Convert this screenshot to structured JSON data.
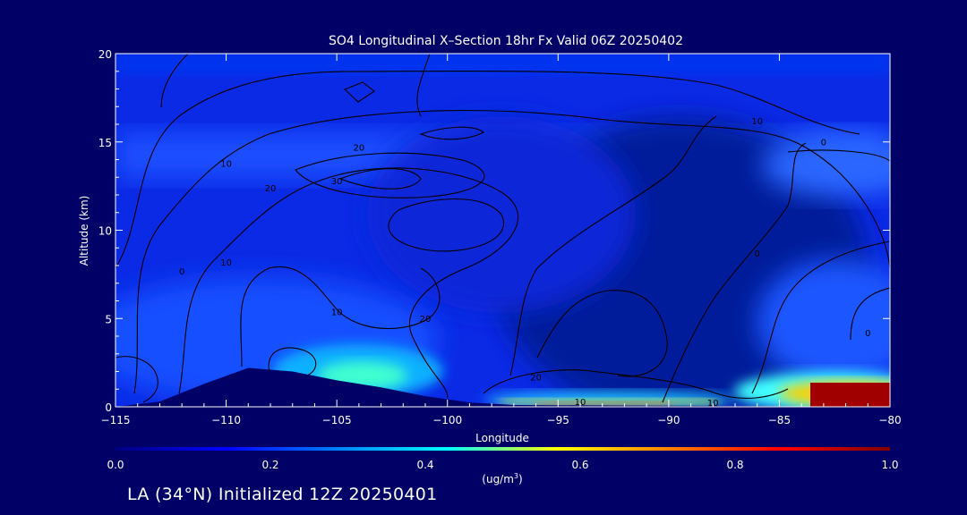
{
  "chart_data": {
    "type": "heatmap",
    "title": "SO4 Longitudinal X–Section 18hr  Fx Valid 06Z 20250402",
    "xlabel": "Longitude",
    "ylabel": "Altitude (km)",
    "xlim": [
      -115,
      -80
    ],
    "ylim": [
      0,
      20
    ],
    "x_ticks": [
      -115,
      -110,
      -105,
      -100,
      -95,
      -90,
      -85,
      -80
    ],
    "x_tick_labels": [
      "−115",
      "−110",
      "−105",
      "−100",
      "−95",
      "−90",
      "−85",
      "−80"
    ],
    "y_ticks": [
      0,
      5,
      10,
      15,
      20
    ],
    "y_tick_labels": [
      "0",
      "5",
      "10",
      "15",
      "20"
    ],
    "colorbar": {
      "min": 0.0,
      "max": 1.0,
      "ticks": [
        0.0,
        0.2,
        0.4,
        0.6,
        0.8,
        1.0
      ],
      "tick_labels": [
        "0.0",
        "0.2",
        "0.4",
        "0.6",
        "0.8",
        "1.0"
      ],
      "units_label": "(ug/m",
      "units_sup": "3",
      "units_close": ")",
      "colors": [
        "#000080",
        "#0000ff",
        "#0080ff",
        "#00ffff",
        "#ffff00",
        "#ff8000",
        "#ff0000",
        "#800000"
      ]
    },
    "field_description": "SO4 concentration in ug/m3 by longitude and altitude",
    "field_points": [
      {
        "lon": -112,
        "alt": 1.0,
        "value": 0.18
      },
      {
        "lon": -104,
        "alt": 1.5,
        "value": 0.4
      },
      {
        "lon": -102,
        "alt": 1.5,
        "value": 0.3
      },
      {
        "lon": -95,
        "alt": 0.3,
        "value": 0.55
      },
      {
        "lon": -91,
        "alt": 0.3,
        "value": 0.65
      },
      {
        "lon": -86,
        "alt": 0.6,
        "value": 0.5
      },
      {
        "lon": -82,
        "alt": 0.6,
        "value": 0.95
      },
      {
        "lon": -81,
        "alt": 1.0,
        "value": 1.0
      },
      {
        "lon": -107,
        "alt": 13,
        "value": 0.25
      },
      {
        "lon": -90,
        "alt": 6,
        "value": 0.02
      },
      {
        "lon": -85,
        "alt": 13.5,
        "value": 0.2
      }
    ],
    "terrain": [
      {
        "lon": -115,
        "alt": 0.0
      },
      {
        "lon": -113,
        "alt": 0.3
      },
      {
        "lon": -111,
        "alt": 1.3
      },
      {
        "lon": -109,
        "alt": 2.2
      },
      {
        "lon": -107,
        "alt": 2.0
      },
      {
        "lon": -105,
        "alt": 1.5
      },
      {
        "lon": -103,
        "alt": 1.1
      },
      {
        "lon": -101,
        "alt": 0.6
      },
      {
        "lon": -99,
        "alt": 0.25
      },
      {
        "lon": -97,
        "alt": 0.1
      },
      {
        "lon": -80,
        "alt": 0.0
      }
    ],
    "contour_labels": [
      {
        "text": "10",
        "lon": -105,
        "alt": 5.2
      },
      {
        "text": "20",
        "lon": -101,
        "alt": 4.8
      },
      {
        "text": "10",
        "lon": -110,
        "alt": 8.0
      },
      {
        "text": "10",
        "lon": -86,
        "alt": 16.0
      },
      {
        "text": "20",
        "lon": -104,
        "alt": 14.5
      },
      {
        "text": "20",
        "lon": -108,
        "alt": 12.2
      },
      {
        "text": "30",
        "lon": -105,
        "alt": 12.6
      },
      {
        "text": "10",
        "lon": -110,
        "alt": 13.6
      },
      {
        "text": "0",
        "lon": -112,
        "alt": 7.5
      },
      {
        "text": "20",
        "lon": -96,
        "alt": 1.5
      },
      {
        "text": "10",
        "lon": -94,
        "alt": 0.1
      },
      {
        "text": "10",
        "lon": -88,
        "alt": 0.05
      },
      {
        "text": "0",
        "lon": -83,
        "alt": 14.8
      },
      {
        "text": "0",
        "lon": -81,
        "alt": 4.0
      },
      {
        "text": "0",
        "lon": -86,
        "alt": 8.5
      }
    ]
  },
  "caption": {
    "text": "LA (34°N) Initialized 12Z 20250401"
  }
}
